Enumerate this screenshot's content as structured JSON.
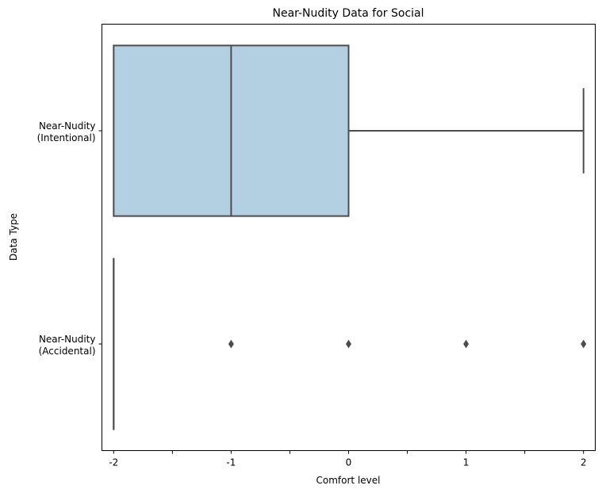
{
  "chart_data": {
    "type": "box",
    "orientation": "horizontal",
    "title": "Near-Nudity Data for Social",
    "xlabel": "Comfort level",
    "ylabel": "Data Type",
    "xlim": [
      -2.1,
      2.1
    ],
    "x_ticks": [
      -2,
      -1.5,
      -1,
      -0.5,
      0,
      0.5,
      1,
      1.5,
      2
    ],
    "x_tick_labels": [
      "-2",
      "",
      "-1",
      "",
      "0",
      "",
      "1",
      "",
      "2"
    ],
    "categories": [
      "Near-Nudity\n(Intentional)",
      "Near-Nudity\n(Accidental)"
    ],
    "boxes": [
      {
        "whisker_low": -2,
        "q1": -2,
        "median": -1,
        "q3": 0,
        "whisker_high": 2,
        "outliers": []
      },
      {
        "whisker_low": -2,
        "q1": -2,
        "median": -2,
        "q3": -2,
        "whisker_high": -2,
        "outliers": [
          -1,
          0,
          1,
          2
        ]
      }
    ],
    "grid": false,
    "colors": {
      "box_fill": "#b3cfe2",
      "line": "#4d4d4d",
      "frame": "#000000"
    }
  }
}
